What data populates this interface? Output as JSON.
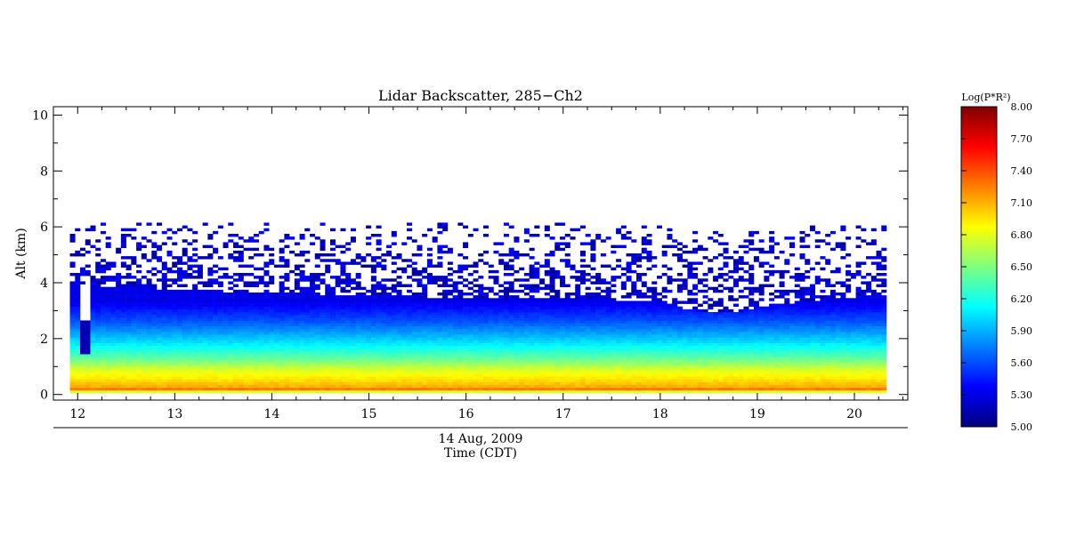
{
  "chart_data": {
    "type": "heatmap",
    "title": "Lidar Backscatter, 285−Ch2",
    "xlabel_date": "14 Aug, 2009",
    "xlabel": "Time (CDT)",
    "ylabel": "Alt (km)",
    "xlim": [
      11.75,
      20.55
    ],
    "ylim": [
      -0.2,
      10.3
    ],
    "x_ticks": [
      12,
      13,
      14,
      15,
      16,
      17,
      18,
      19,
      20
    ],
    "y_ticks": [
      0,
      2,
      4,
      6,
      8,
      10
    ],
    "data_extent": {
      "x": [
        11.92,
        20.33
      ],
      "y": [
        0.05,
        6.05
      ]
    },
    "colorbar": {
      "title": "Log(P*R²)",
      "range": [
        5.0,
        8.0
      ],
      "tick_labels": [
        "8.00",
        "7.70",
        "7.40",
        "7.10",
        "6.80",
        "6.50",
        "6.20",
        "5.90",
        "5.60",
        "5.30",
        "5.00"
      ],
      "colormap": [
        "#00007f",
        "#0000ff",
        "#007fff",
        "#00ffff",
        "#7fff7f",
        "#ffff00",
        "#ff7f00",
        "#ff0000",
        "#7f0000"
      ]
    },
    "profile": {
      "x": [
        11.92,
        12.5,
        13.0,
        14.0,
        15.0,
        15.5,
        16.0,
        17.0,
        17.5,
        18.0,
        18.3,
        18.6,
        18.8,
        19.0,
        19.5,
        20.0,
        20.33
      ],
      "signal_top_km": [
        3.9,
        3.8,
        3.7,
        3.6,
        3.5,
        3.45,
        3.4,
        3.4,
        3.35,
        3.3,
        3.0,
        2.85,
        2.9,
        3.1,
        3.3,
        3.45,
        3.5
      ]
    },
    "noise_ceiling_km": 6.05,
    "levels_km": [
      0.0,
      0.1,
      0.25,
      0.5,
      0.8,
      1.2,
      1.8,
      2.6,
      3.3
    ],
    "levels_value": [
      6.2,
      7.35,
      7.1,
      6.95,
      6.8,
      6.45,
      6.05,
      5.6,
      5.3
    ]
  }
}
